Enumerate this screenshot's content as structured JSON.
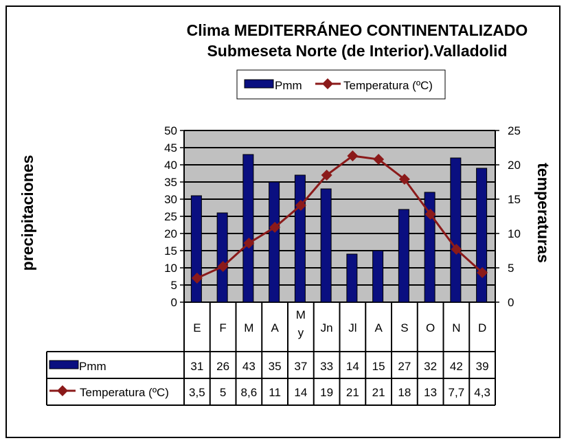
{
  "chart_data": {
    "type": "bar-line",
    "title": "Clima MEDITERRÁNEO CONTINENTALIZADO",
    "subtitle": "Submeseta Norte (de Interior).Valladolid",
    "categories": [
      "E",
      "F",
      "M",
      "A",
      "My",
      "Jn",
      "Jl",
      "A",
      "S",
      "O",
      "N",
      "D"
    ],
    "series": [
      {
        "name": "Pmm",
        "type": "bar",
        "axis": "left",
        "color": "#0a0f80",
        "values": [
          31,
          26,
          43,
          35,
          37,
          33,
          14,
          15,
          27,
          32,
          42,
          39
        ],
        "labels": [
          "31",
          "26",
          "43",
          "35",
          "37",
          "33",
          "14",
          "15",
          "27",
          "32",
          "42",
          "39"
        ]
      },
      {
        "name": "Temperatura (ºC)",
        "type": "line",
        "axis": "right",
        "color": "#8b1a1a",
        "values": [
          3.5,
          5.2,
          8.6,
          10.9,
          14.1,
          18.5,
          21.3,
          20.8,
          17.9,
          12.8,
          7.7,
          4.3
        ],
        "labels": [
          "3,5",
          "5",
          "8,6",
          "11",
          "14",
          "19",
          "21",
          "21",
          "18",
          "13",
          "7,7",
          "4,3"
        ]
      }
    ],
    "legend": {
      "position": "top",
      "pmm": "Pmm",
      "temp": "Temperatura (ºC)"
    },
    "table_legend": {
      "pmm": "Pmm",
      "temp": "Temperatura  (ºC)"
    },
    "y_left": {
      "label": "precipitaciones",
      "min": 0,
      "max": 50,
      "step": 5
    },
    "y_right": {
      "label": "temperaturas",
      "min": 0,
      "max": 25,
      "step": 5
    },
    "grid": true,
    "data_table": true,
    "plot_background": "#c0c0c0"
  }
}
